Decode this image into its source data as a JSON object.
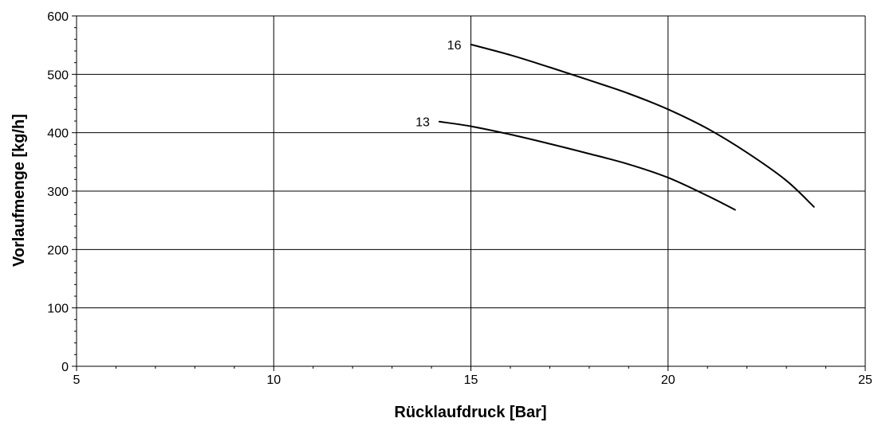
{
  "chart_data": {
    "type": "line",
    "xlabel": "Rücklaufdruck [Bar]",
    "ylabel": "Vorlaufmenge [kg/h]",
    "xlim": [
      5,
      25
    ],
    "ylim": [
      0,
      600
    ],
    "xticks": [
      5,
      10,
      15,
      20,
      25
    ],
    "yticks": [
      0,
      100,
      200,
      300,
      400,
      500,
      600
    ],
    "grid": true,
    "legend": "none",
    "line_color": "#000000",
    "grid_color": "#000000",
    "series": [
      {
        "name": "16",
        "x": [
          15.0,
          16.0,
          17.0,
          18.0,
          19.0,
          20.0,
          21.0,
          22.0,
          23.0,
          23.7
        ],
        "y": [
          551,
          533,
          512,
          490,
          467,
          440,
          407,
          366,
          318,
          273
        ]
      },
      {
        "name": "13",
        "x": [
          14.2,
          15.0,
          16.0,
          17.0,
          18.0,
          19.0,
          20.0,
          21.0,
          21.7
        ],
        "y": [
          419,
          411,
          397,
          381,
          364,
          346,
          323,
          292,
          268
        ]
      }
    ]
  }
}
